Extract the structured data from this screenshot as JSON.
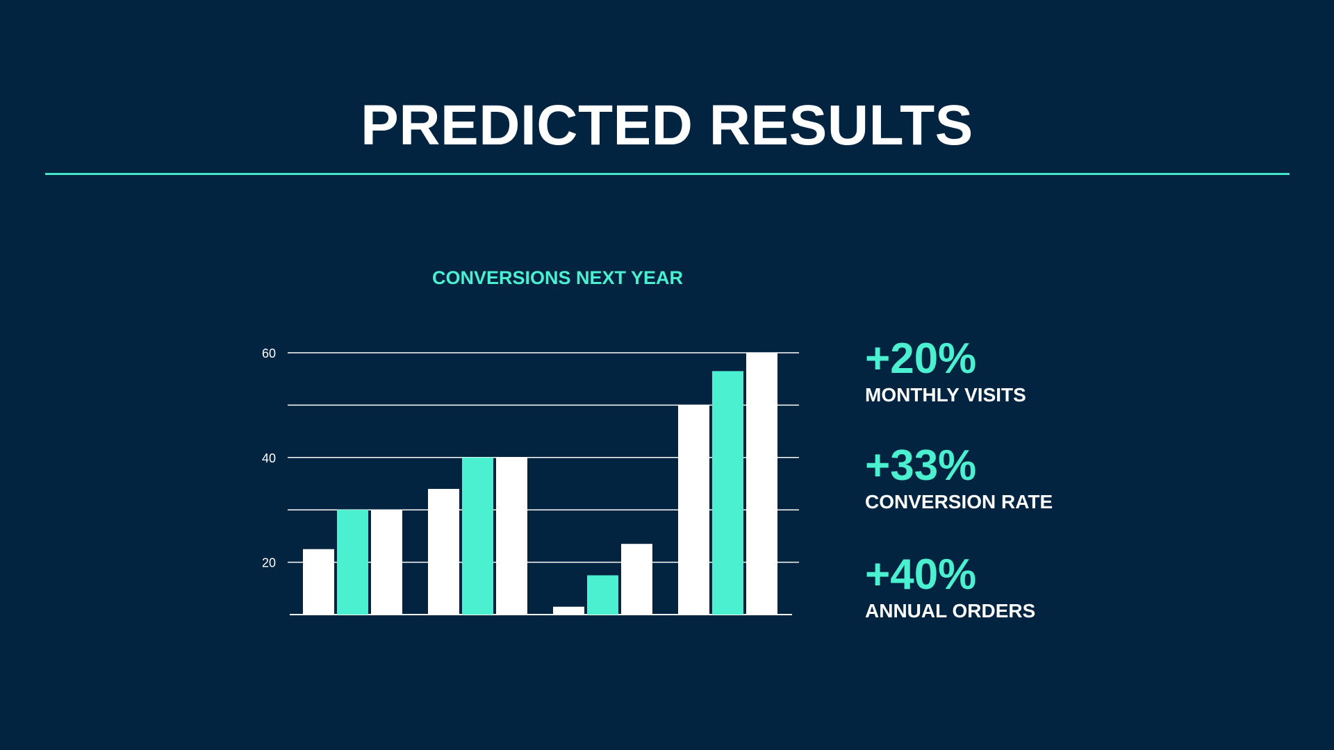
{
  "slide": {
    "title": "PREDICTED RESULTS"
  },
  "stats": [
    {
      "value": "+20%",
      "label": "MONTHLY VISITS"
    },
    {
      "value": "+33%",
      "label": "CONVERSION RATE"
    },
    {
      "value": "+40%",
      "label": "ANNUAL ORDERS"
    }
  ],
  "colors": {
    "background": "#032440",
    "accent": "#4af0cf",
    "white": "#ffffff"
  },
  "chart_data": {
    "type": "bar",
    "title": "CONVERSIONS NEXT YEAR",
    "xlabel": "",
    "ylabel": "",
    "ylim": [
      10,
      60
    ],
    "yticks": [
      20,
      40,
      60
    ],
    "grid": true,
    "grid_values": [
      20,
      30,
      40,
      50,
      60
    ],
    "groups": 4,
    "series": [
      {
        "values": [
          22.5,
          34,
          11.5,
          50
        ],
        "color": "#ffffff"
      },
      {
        "values": [
          30,
          40,
          17.5,
          56.5
        ],
        "color": "#4af0cf"
      },
      {
        "values": [
          30,
          40,
          23.5,
          60
        ],
        "color": "#ffffff"
      }
    ]
  }
}
